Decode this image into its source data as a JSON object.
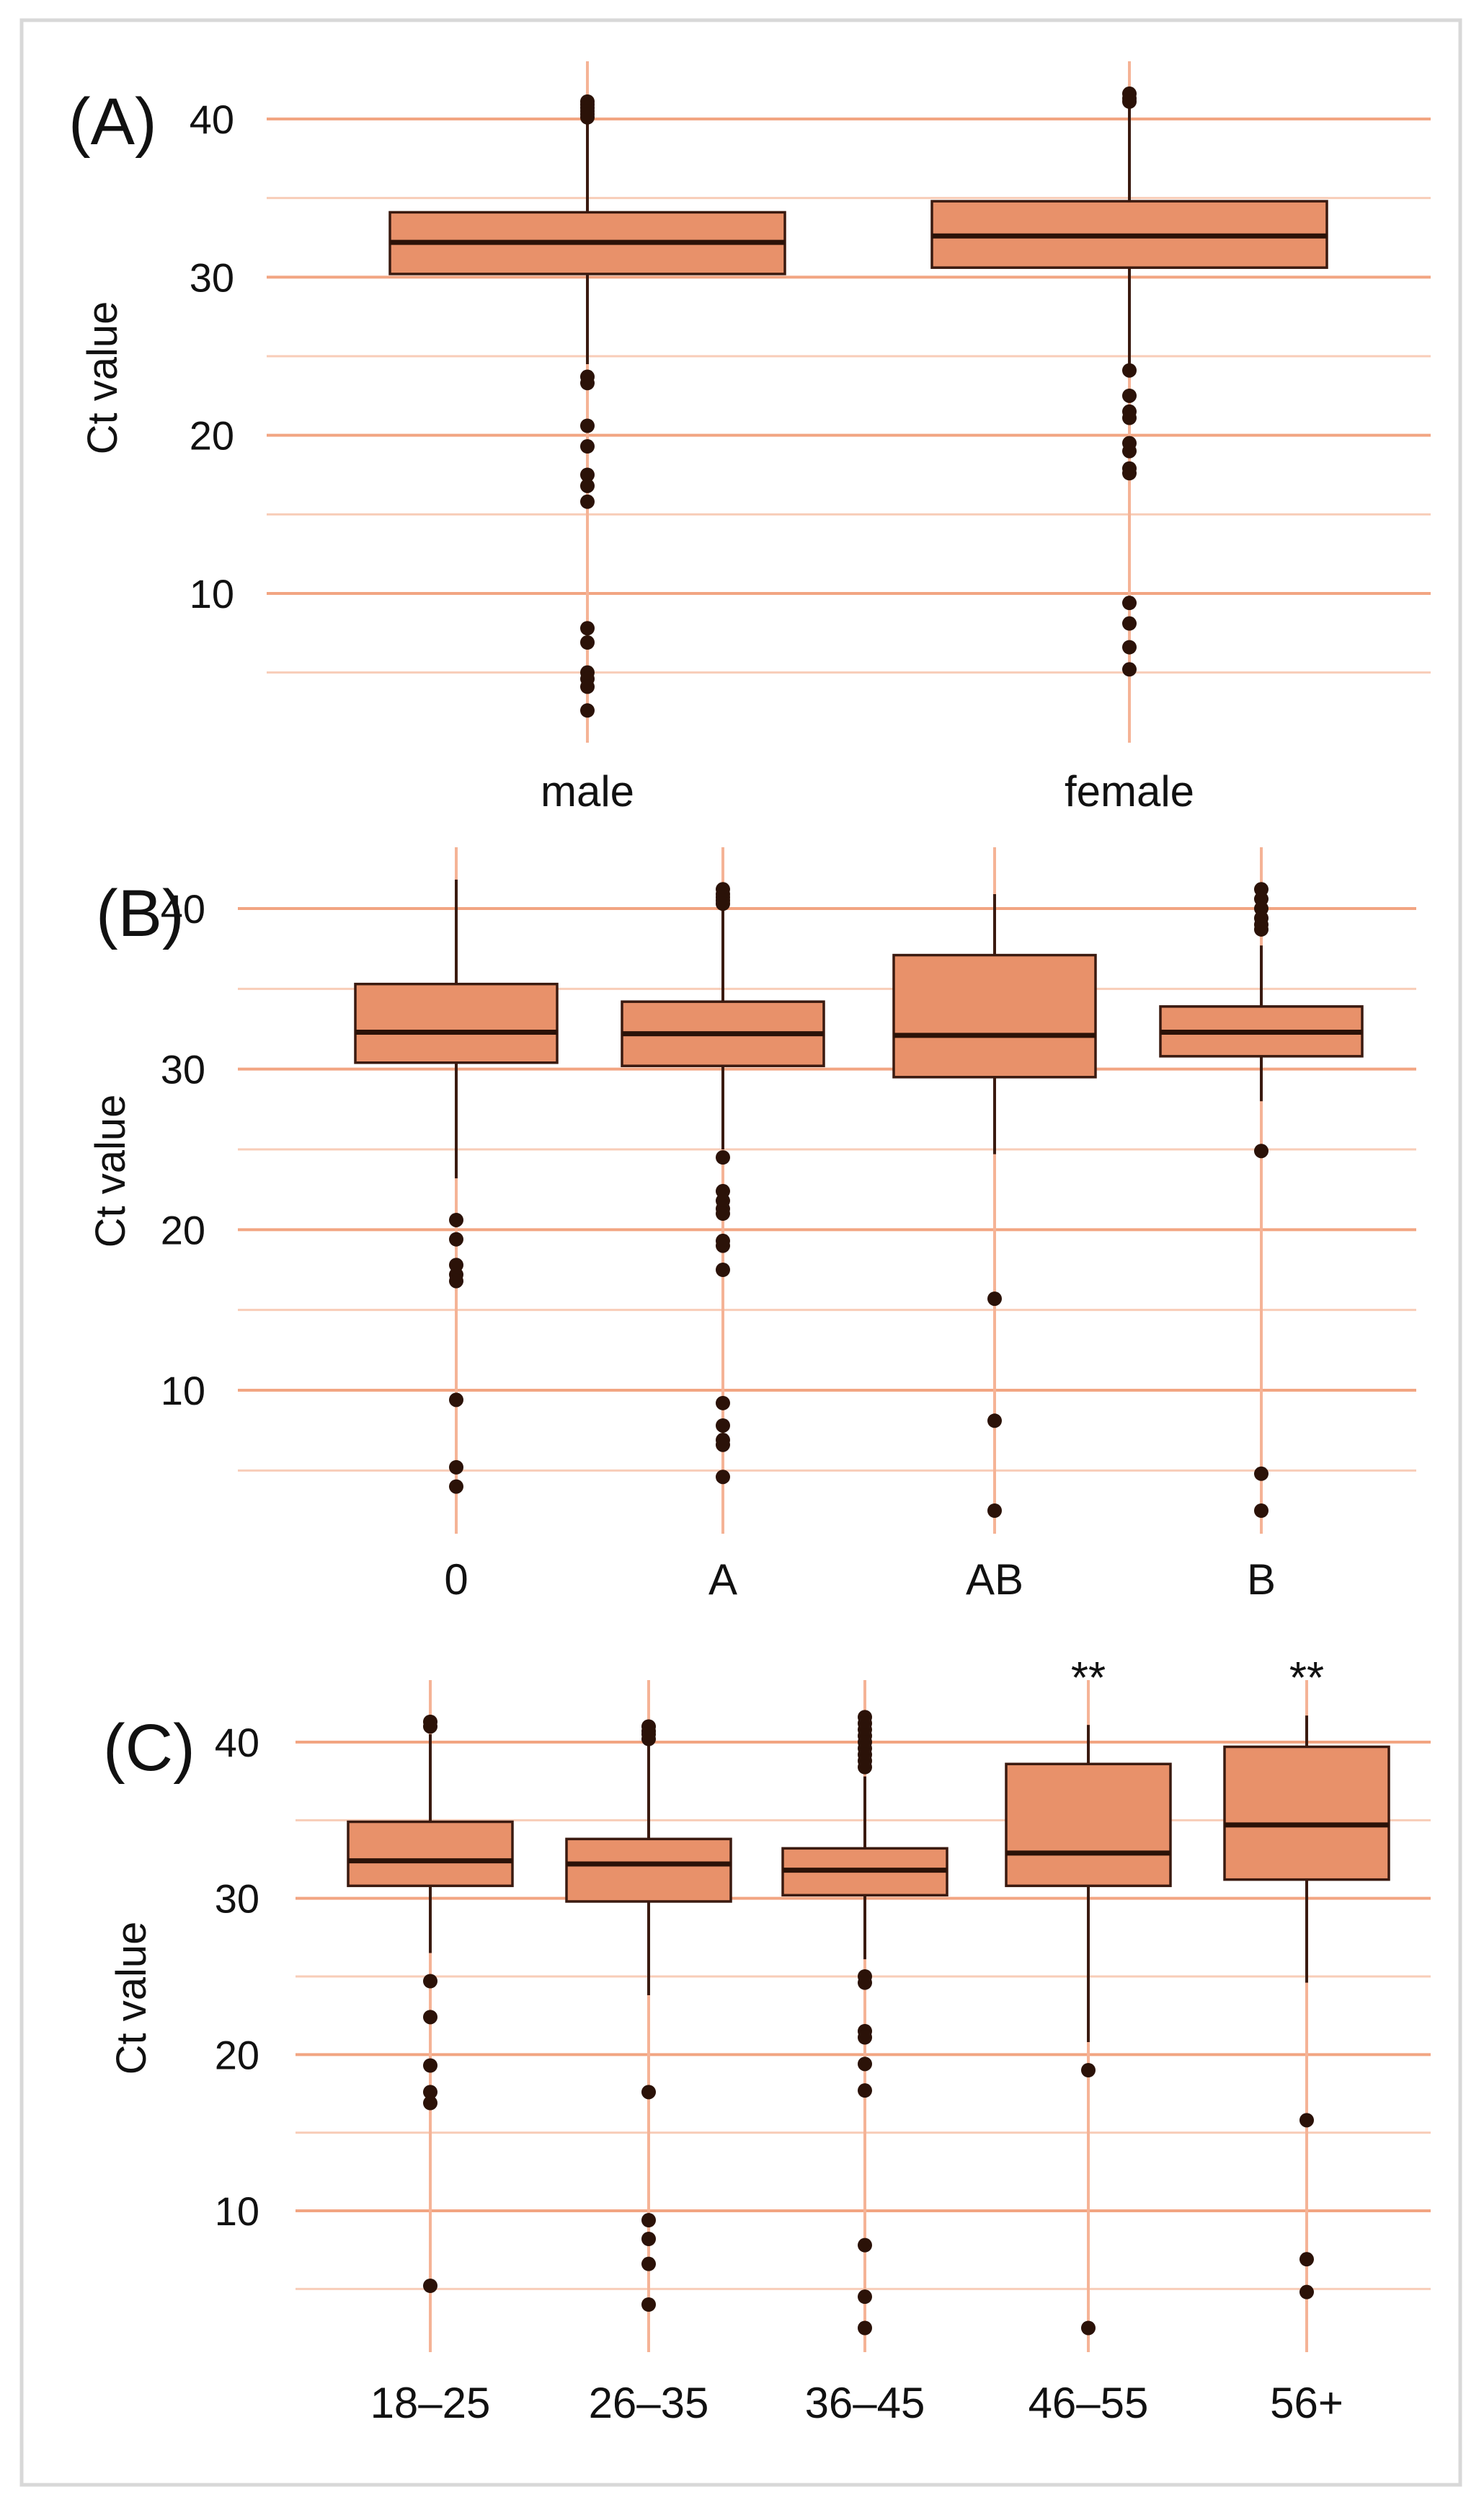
{
  "colors": {
    "box_fill": "#E8916A",
    "box_edge": "#3A1A10",
    "median": "#2B1208",
    "outlier": "#2B1208",
    "grid_major": "#F2A582",
    "grid_minor": "#F8CDB8",
    "vline": "#F5B396",
    "frame": "#D8D8D8"
  },
  "chart_data": [
    {
      "panel": "(A)",
      "type": "box",
      "ylabel": "Ct value",
      "ylim": [
        2,
        44
      ],
      "yticks": [
        10,
        20,
        30,
        40
      ],
      "categories": [
        "male",
        "female"
      ],
      "boxes": [
        {
          "name": "male",
          "whisker_low": 24.5,
          "q1": 30.2,
          "median": 32.2,
          "q3": 34.1,
          "whisker_high": 40,
          "outliers": [
            41.1,
            40.9,
            40.7,
            40.5,
            40.3,
            40.1,
            23.7,
            23.3,
            20.6,
            19.3,
            17.5,
            16.8,
            15.8,
            7.8,
            6.9,
            5,
            4.6,
            4.1,
            2.6
          ]
        },
        {
          "name": "female",
          "whisker_low": 24.1,
          "q1": 30.6,
          "median": 32.6,
          "q3": 34.8,
          "whisker_high": 41,
          "outliers": [
            41.6,
            41.3,
            41.1,
            24.1,
            22.5,
            21.5,
            21.1,
            19.5,
            19,
            17.9,
            17.6,
            9.4,
            8.1,
            6.6,
            5.2
          ]
        }
      ]
    },
    {
      "panel": "(B)",
      "type": "box",
      "ylabel": "Ct value",
      "ylim": [
        2,
        44
      ],
      "yticks": [
        10,
        20,
        30,
        40
      ],
      "categories": [
        "0",
        "A",
        "AB",
        "B"
      ],
      "boxes": [
        {
          "name": "0",
          "whisker_low": 23.2,
          "q1": 30.4,
          "median": 32.3,
          "q3": 35.3,
          "whisker_high": 41.8,
          "outliers": [
            20.6,
            19.4,
            17.8,
            17.2,
            16.8,
            9.4,
            5.2,
            4
          ]
        },
        {
          "name": "A",
          "whisker_low": 25,
          "q1": 30.2,
          "median": 32.2,
          "q3": 34.2,
          "whisker_high": 40,
          "outliers": [
            41.2,
            40.9,
            40.7,
            40.5,
            40.3,
            24.5,
            22.4,
            21.8,
            21.3,
            21,
            19.3,
            19,
            17.5,
            9.2,
            7.8,
            6.9,
            6.6,
            4.6
          ]
        },
        {
          "name": "AB",
          "whisker_low": 24.7,
          "q1": 29.5,
          "median": 32.1,
          "q3": 37.1,
          "whisker_high": 40.9,
          "outliers": [
            15.7,
            8.1,
            2.5
          ]
        },
        {
          "name": "B",
          "whisker_low": 28,
          "q1": 30.8,
          "median": 32.3,
          "q3": 33.9,
          "whisker_high": 37.7,
          "outliers": [
            41.2,
            40.6,
            40,
            39.4,
            39,
            38.7,
            24.9,
            4.8,
            2.5
          ]
        }
      ]
    },
    {
      "panel": "(C)",
      "type": "box",
      "ylabel": "Ct value",
      "ylim": [
        2,
        44
      ],
      "yticks": [
        10,
        20,
        30,
        40
      ],
      "categories": [
        "18–25",
        "26–35",
        "36–45",
        "46–55",
        "56+"
      ],
      "annotations": [
        {
          "category": "46–55",
          "text": "**"
        },
        {
          "category": "56+",
          "text": "**"
        }
      ],
      "boxes": [
        {
          "name": "18–25",
          "whisker_low": 26.5,
          "q1": 30.8,
          "median": 32.4,
          "q3": 34.9,
          "whisker_high": 40.5,
          "outliers": [
            41.3,
            41,
            24.7,
            22.4,
            19.3,
            17.6,
            16.9,
            5.2
          ]
        },
        {
          "name": "26–35",
          "whisker_low": 23.8,
          "q1": 29.8,
          "median": 32.2,
          "q3": 33.8,
          "whisker_high": 39.8,
          "outliers": [
            41,
            40.7,
            40.5,
            40.2,
            17.6,
            9.4,
            8.2,
            6.6,
            4
          ]
        },
        {
          "name": "36–45",
          "whisker_low": 26.1,
          "q1": 30.2,
          "median": 31.8,
          "q3": 33.2,
          "whisker_high": 37.8,
          "outliers": [
            41.6,
            41.2,
            40.8,
            40.4,
            40,
            39.6,
            39.2,
            38.8,
            38.4,
            25,
            24.6,
            21.5,
            21.1,
            19.4,
            17.7,
            7.8,
            4.5,
            2.5
          ]
        },
        {
          "name": "46–55",
          "whisker_low": 20.8,
          "q1": 30.8,
          "median": 32.9,
          "q3": 38.6,
          "whisker_high": 41.1,
          "outliers": [
            19,
            2.5
          ]
        },
        {
          "name": "56+",
          "whisker_low": 24.6,
          "q1": 31.2,
          "median": 34.7,
          "q3": 39.7,
          "whisker_high": 41.7,
          "outliers": [
            15.8,
            6.9,
            4.8
          ]
        }
      ]
    }
  ]
}
